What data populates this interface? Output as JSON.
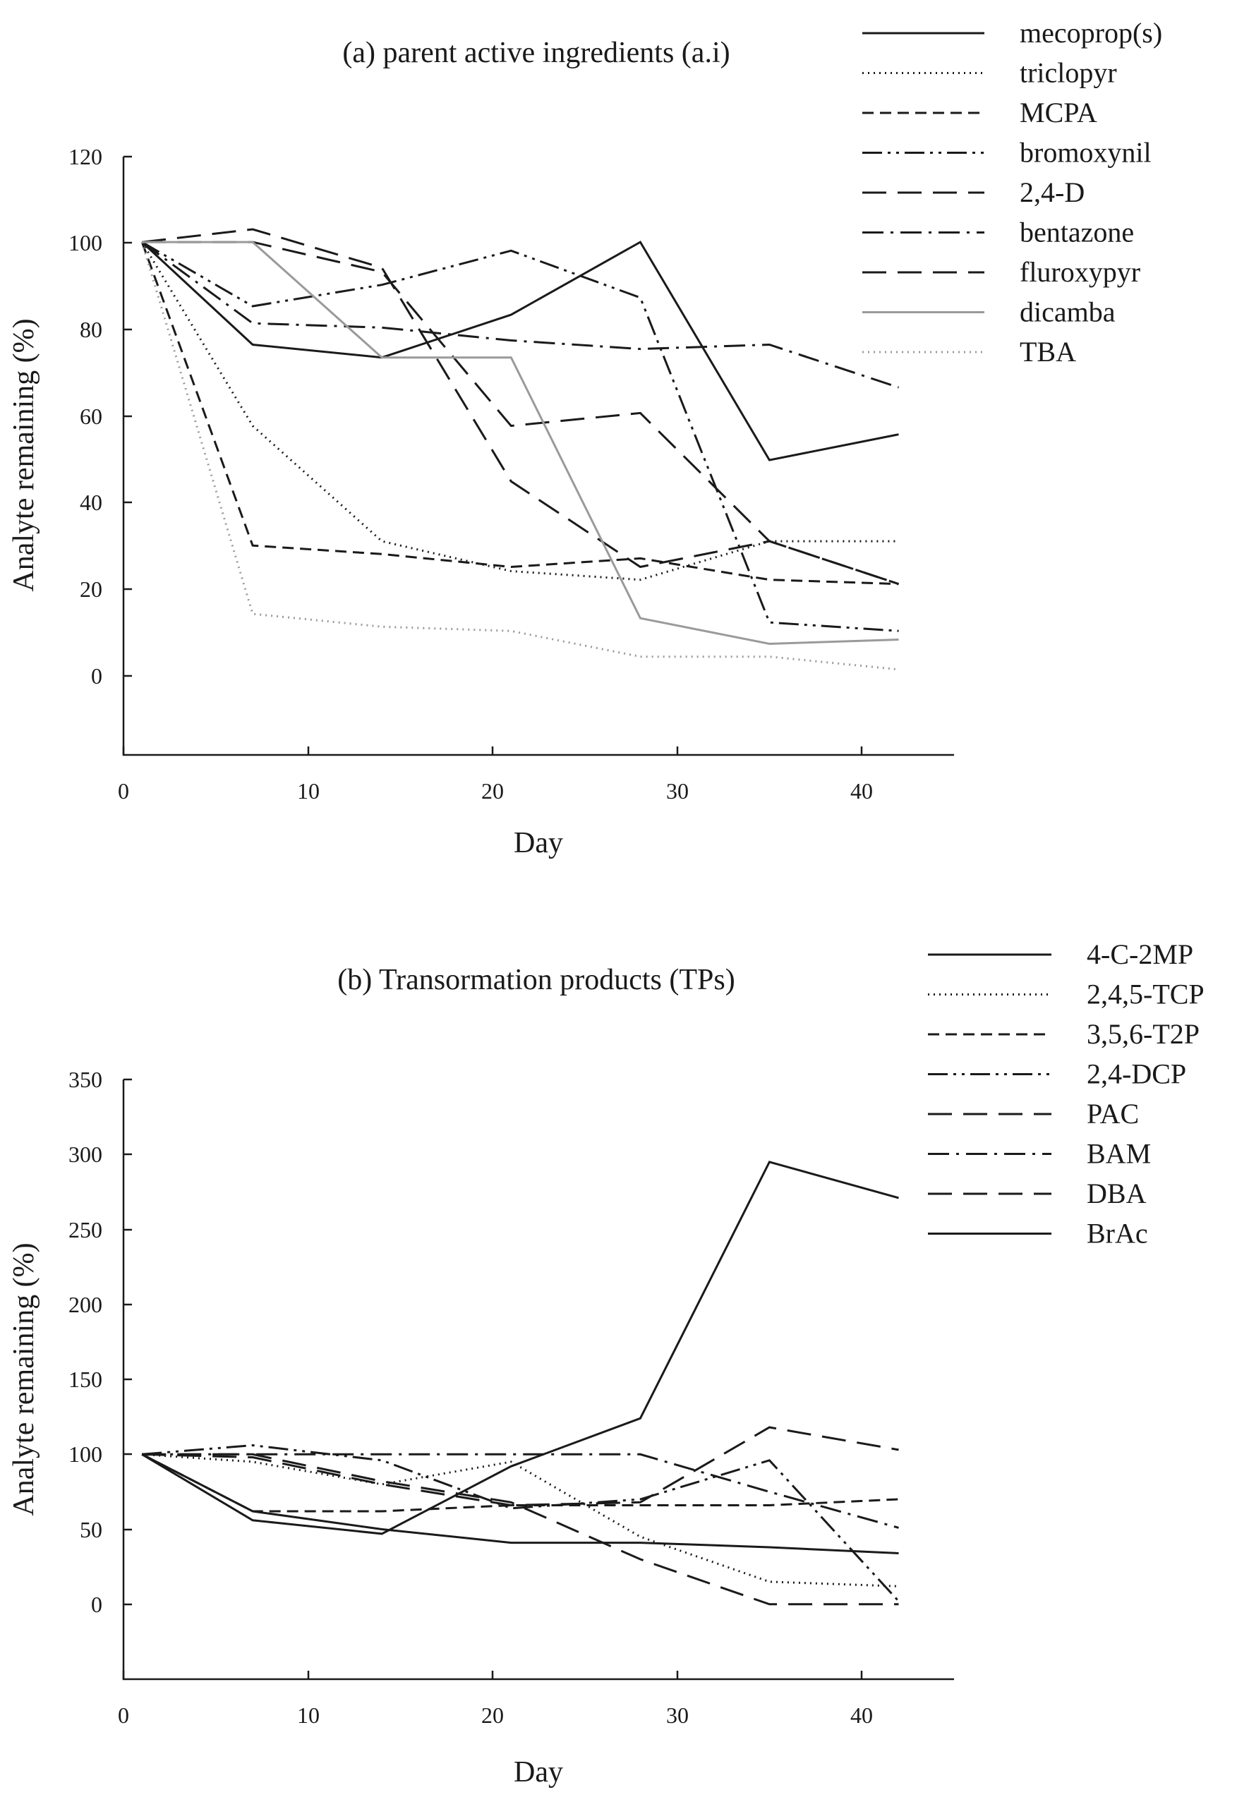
{
  "chart_data": [
    {
      "type": "line",
      "title": "(a) parent active ingredients (a.i)",
      "xlabel": "Day",
      "ylabel": "Analyte remaining (%)",
      "xlim": [
        0,
        45
      ],
      "ylim": [
        -20,
        120
      ],
      "xticks": [
        "0",
        "10",
        "20",
        "30",
        "40"
      ],
      "yticks": [
        "0",
        "20",
        "40",
        "60",
        "80",
        "100",
        "120"
      ],
      "grid": false,
      "legend_position": "top-right",
      "series": [
        {
          "name": "mecoprop(s)",
          "dash": "solid",
          "color": "#1a1a1a",
          "x": [
            1,
            7,
            14,
            21,
            28,
            35,
            42
          ],
          "y": [
            100,
            76,
            73,
            83,
            100,
            49,
            55
          ]
        },
        {
          "name": "triclopyr",
          "dash": "dotted",
          "color": "#1a1a1a",
          "x": [
            1,
            7,
            14,
            21,
            28,
            35,
            42
          ],
          "y": [
            100,
            57,
            30,
            23,
            21,
            30,
            30
          ]
        },
        {
          "name": "MCPA",
          "dash": "dashed",
          "color": "#1a1a1a",
          "x": [
            1,
            7,
            14,
            21,
            28,
            35,
            42
          ],
          "y": [
            100,
            29,
            27,
            24,
            26,
            21,
            20
          ]
        },
        {
          "name": "bromoxynil",
          "dash": "dash-dot-dot",
          "color": "#1a1a1a",
          "x": [
            1,
            7,
            14,
            21,
            28,
            35,
            42
          ],
          "y": [
            100,
            85,
            90,
            98,
            87,
            11,
            9
          ]
        },
        {
          "name": "2,4-D",
          "dash": "long-dash",
          "color": "#1a1a1a",
          "x": [
            1,
            7,
            14,
            21,
            28,
            35,
            42
          ],
          "y": [
            100,
            103,
            94,
            44,
            24,
            30,
            20
          ]
        },
        {
          "name": "bentazone",
          "dash": "dash-dot",
          "color": "#1a1a1a",
          "x": [
            1,
            7,
            14,
            21,
            28,
            35,
            42
          ],
          "y": [
            100,
            81,
            80,
            77,
            75,
            76,
            66
          ]
        },
        {
          "name": "fluroxypyr",
          "dash": "long-dash",
          "color": "#1a1a1a",
          "x": [
            1,
            7,
            14,
            21,
            28,
            35,
            42
          ],
          "y": [
            100,
            100,
            93,
            57,
            60,
            30,
            20
          ]
        },
        {
          "name": "dicamba",
          "dash": "solid",
          "color": "#9a9a9a",
          "x": [
            1,
            7,
            14,
            21,
            28,
            35,
            42
          ],
          "y": [
            100,
            100,
            73,
            73,
            12,
            6,
            7
          ]
        },
        {
          "name": "TBA",
          "dash": "dotted",
          "color": "#9a9a9a",
          "x": [
            1,
            7,
            14,
            21,
            28,
            35,
            42
          ],
          "y": [
            100,
            13,
            10,
            9,
            3,
            3,
            0
          ]
        }
      ]
    },
    {
      "type": "line",
      "title": "(b) Transormation products (TPs)",
      "xlabel": "Day",
      "ylabel": "Analyte remaining (%)",
      "xlim": [
        0,
        45
      ],
      "ylim": [
        -50,
        350
      ],
      "xticks": [
        "0",
        "10",
        "20",
        "30",
        "40"
      ],
      "yticks": [
        "0",
        "50",
        "100",
        "150",
        "200",
        "250",
        "300",
        "350"
      ],
      "grid": false,
      "legend_position": "top-right",
      "series": [
        {
          "name": "4-C-2MP",
          "dash": "solid",
          "color": "#1a1a1a",
          "x": [
            1,
            7,
            14,
            21,
            28,
            35,
            42
          ],
          "y": [
            100,
            62,
            50,
            41,
            41,
            38,
            34
          ]
        },
        {
          "name": "2,4,5-TCP",
          "dash": "dotted",
          "color": "#1a1a1a",
          "x": [
            1,
            7,
            14,
            21,
            28,
            35,
            42
          ],
          "y": [
            100,
            95,
            80,
            95,
            45,
            15,
            12
          ]
        },
        {
          "name": "3,5,6-T2P",
          "dash": "dashed",
          "color": "#1a1a1a",
          "x": [
            1,
            7,
            14,
            21,
            28,
            35,
            42
          ],
          "y": [
            100,
            62,
            62,
            66,
            66,
            66,
            70
          ]
        },
        {
          "name": "2,4-DCP",
          "dash": "dash-dot-dot",
          "color": "#1a1a1a",
          "x": [
            1,
            7,
            14,
            21,
            28,
            35,
            42
          ],
          "y": [
            100,
            106,
            96,
            64,
            70,
            96,
            2
          ]
        },
        {
          "name": "PAC",
          "dash": "long-dash",
          "color": "#1a1a1a",
          "x": [
            1,
            7,
            14,
            21,
            28,
            35,
            42
          ],
          "y": [
            100,
            100,
            82,
            68,
            30,
            0,
            0
          ]
        },
        {
          "name": "BAM",
          "dash": "dash-dot",
          "color": "#1a1a1a",
          "x": [
            1,
            7,
            14,
            21,
            28,
            35,
            42
          ],
          "y": [
            100,
            100,
            100,
            100,
            100,
            75,
            51
          ]
        },
        {
          "name": "DBA",
          "dash": "long-dash",
          "color": "#1a1a1a",
          "x": [
            1,
            7,
            14,
            21,
            28,
            35,
            42
          ],
          "y": [
            100,
            98,
            80,
            66,
            68,
            118,
            103
          ]
        },
        {
          "name": "BrAc",
          "dash": "solid",
          "color": "#1a1a1a",
          "x": [
            1,
            7,
            14,
            21,
            28,
            35,
            42
          ],
          "y": [
            100,
            56,
            47,
            92,
            124,
            295,
            271
          ]
        }
      ]
    }
  ]
}
